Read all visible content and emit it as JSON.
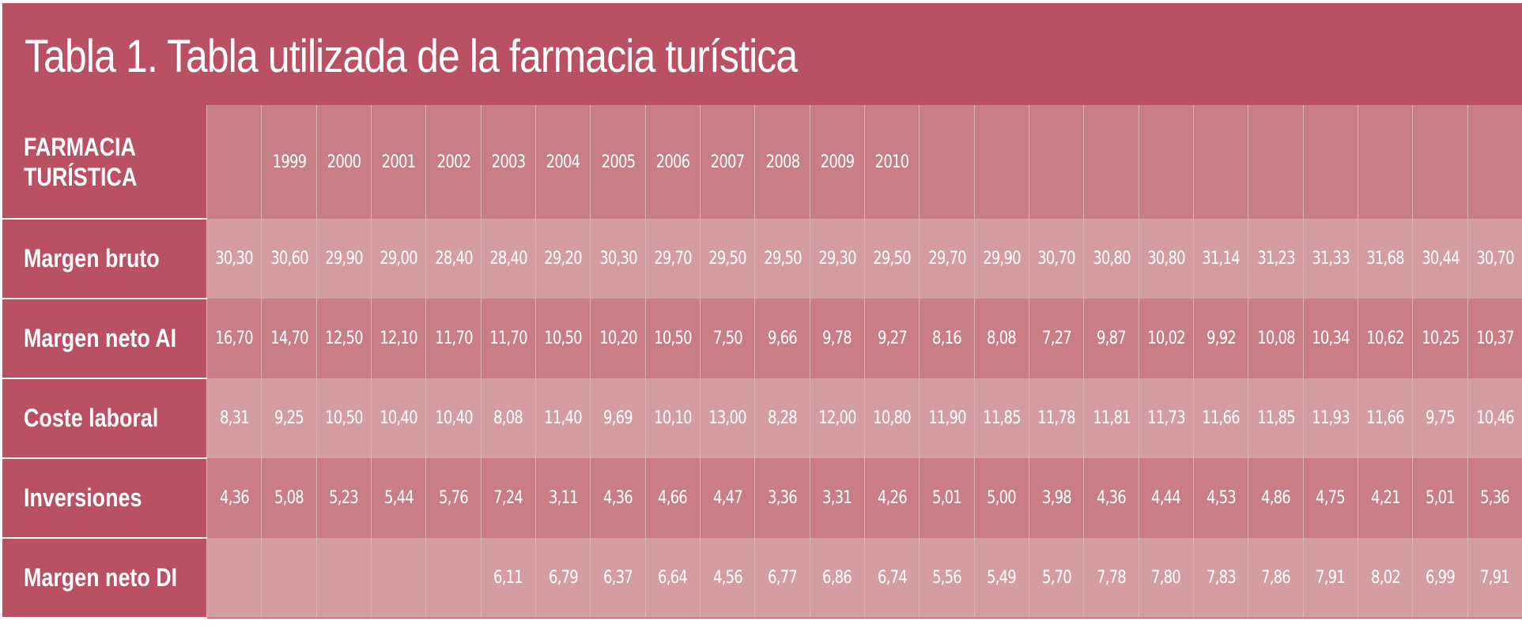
{
  "title": "Tabla 1. Tabla utilizada de la farmacia turística",
  "header": {
    "label_line1": "FARMACIA",
    "label_line2": "TURÍSTICA",
    "years": [
      "",
      "1999",
      "2000",
      "2001",
      "2002",
      "2003",
      "2004",
      "2005",
      "2006",
      "2007",
      "2008",
      "2009",
      "2010",
      "",
      "",
      "",
      "",
      "",
      "",
      "",
      "",
      "",
      "",
      ""
    ]
  },
  "rows": [
    {
      "label": "Margen bruto",
      "values": [
        "30,30",
        "30,60",
        "29,90",
        "29,00",
        "28,40",
        "28,40",
        "29,20",
        "30,30",
        "29,70",
        "29,50",
        "29,50",
        "29,30",
        "29,50",
        "29,70",
        "29,90",
        "30,70",
        "30,80",
        "30,80",
        "31,14",
        "31,23",
        "31,33",
        "31,68",
        "30,44",
        "30,70"
      ]
    },
    {
      "label": "Margen neto AI",
      "values": [
        "16,70",
        "14,70",
        "12,50",
        "12,10",
        "11,70",
        "11,70",
        "10,50",
        "10,20",
        "10,50",
        "7,50",
        "9,66",
        "9,78",
        "9,27",
        "8,16",
        "8,08",
        "7,27",
        "9,87",
        "10,02",
        "9,92",
        "10,08",
        "10,34",
        "10,62",
        "10,25",
        "10,37"
      ]
    },
    {
      "label": "Coste laboral",
      "values": [
        "8,31",
        "9,25",
        "10,50",
        "10,40",
        "10,40",
        "8,08",
        "11,40",
        "9,69",
        "10,10",
        "13,00",
        "8,28",
        "12,00",
        "10,80",
        "11,90",
        "11,85",
        "11,78",
        "11,81",
        "11,73",
        "11,66",
        "11,85",
        "11,93",
        "11,66",
        "9,75",
        "10,46"
      ]
    },
    {
      "label": "Inversiones",
      "values": [
        "4,36",
        "5,08",
        "5,23",
        "5,44",
        "5,76",
        "7,24",
        "3,11",
        "4,36",
        "4,66",
        "4,47",
        "3,36",
        "3,31",
        "4,26",
        "5,01",
        "5,00",
        "3,98",
        "4,36",
        "4,44",
        "4,53",
        "4,86",
        "4,75",
        "4,21",
        "5,01",
        "5,36"
      ]
    },
    {
      "label": "Margen neto DI",
      "values": [
        "",
        "",
        "",
        "",
        "",
        "6,11",
        "6,79",
        "6,37",
        "6,64",
        "4,56",
        "6,77",
        "6,86",
        "6,74",
        "5,56",
        "5,49",
        "5,70",
        "7,78",
        "7,80",
        "7,83",
        "7,86",
        "7,91",
        "8,02",
        "6,99",
        "7,91"
      ]
    }
  ]
}
